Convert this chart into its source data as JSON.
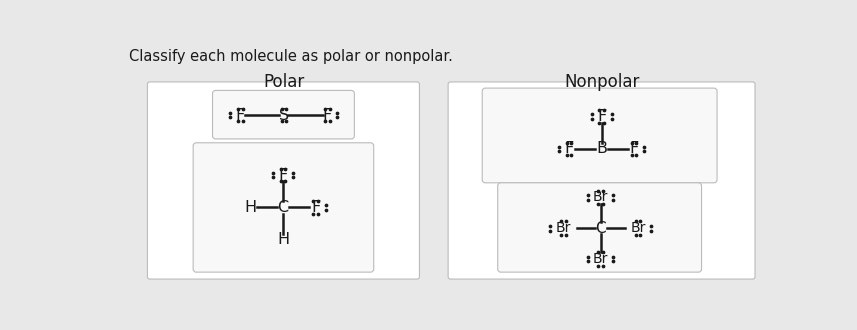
{
  "title_text": "Classify each molecule as polar or nonpolar.",
  "polar_label": "Polar",
  "nonpolar_label": "Nonpolar",
  "bg_color": "#e8e8e8",
  "outer_box_color": "#ffffff",
  "inner_box_color": "#f5f5f5",
  "text_color": "#1a1a1a",
  "bond_color": "#1a1a1a",
  "figsize": [
    8.57,
    3.3
  ],
  "dpi": 100
}
